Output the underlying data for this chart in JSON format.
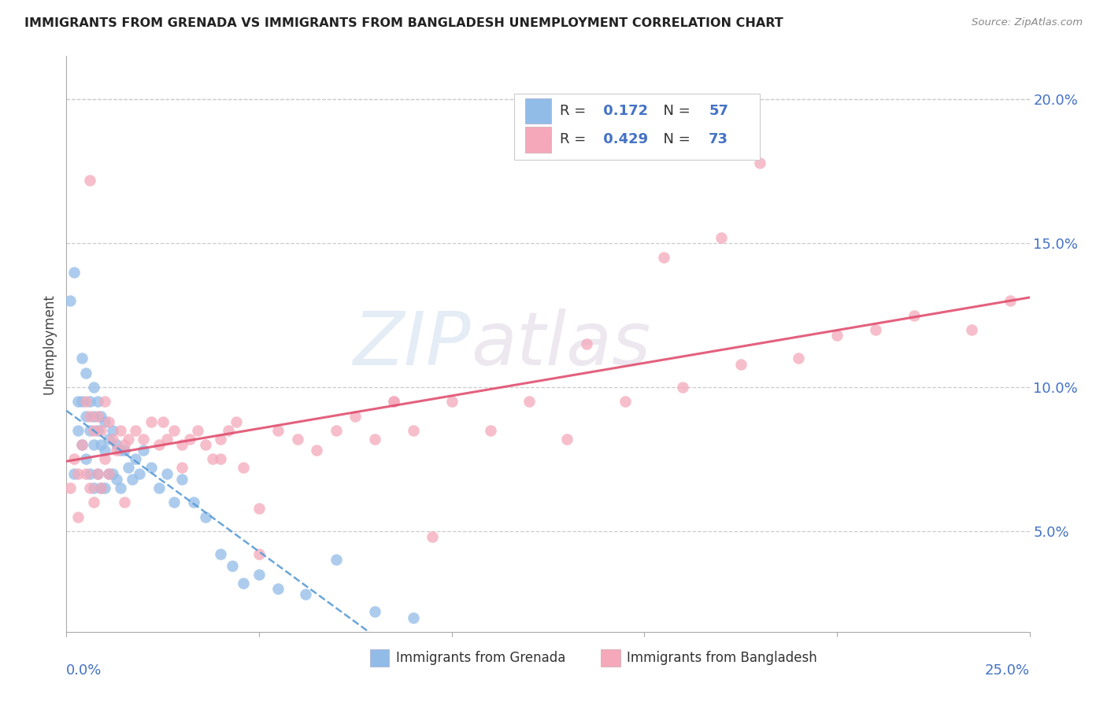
{
  "title": "IMMIGRANTS FROM GRENADA VS IMMIGRANTS FROM BANGLADESH UNEMPLOYMENT CORRELATION CHART",
  "source": "Source: ZipAtlas.com",
  "ylabel": "Unemployment",
  "yticks": [
    0.05,
    0.1,
    0.15,
    0.2
  ],
  "ytick_labels": [
    "5.0%",
    "10.0%",
    "15.0%",
    "20.0%"
  ],
  "xlim": [
    0.0,
    0.25
  ],
  "ylim": [
    0.015,
    0.215
  ],
  "R_grenada": 0.172,
  "N_grenada": 57,
  "R_bangladesh": 0.429,
  "N_bangladesh": 73,
  "color_grenada": "#92bce8",
  "color_bangladesh": "#f4a8ba",
  "trendline_grenada_color": "#5b9bd5",
  "trendline_bangladesh_color": "#e05070",
  "watermark_zip": "ZIP",
  "watermark_atlas": "atlas",
  "grenada_x": [
    0.001,
    0.002,
    0.002,
    0.003,
    0.003,
    0.004,
    0.004,
    0.004,
    0.005,
    0.005,
    0.005,
    0.006,
    0.006,
    0.006,
    0.007,
    0.007,
    0.007,
    0.007,
    0.008,
    0.008,
    0.008,
    0.009,
    0.009,
    0.009,
    0.01,
    0.01,
    0.01,
    0.011,
    0.011,
    0.012,
    0.012,
    0.013,
    0.013,
    0.014,
    0.014,
    0.015,
    0.016,
    0.017,
    0.018,
    0.019,
    0.02,
    0.022,
    0.024,
    0.026,
    0.028,
    0.03,
    0.033,
    0.036,
    0.04,
    0.043,
    0.046,
    0.05,
    0.055,
    0.062,
    0.07,
    0.08,
    0.09
  ],
  "grenada_y": [
    0.13,
    0.14,
    0.07,
    0.095,
    0.085,
    0.11,
    0.095,
    0.08,
    0.105,
    0.09,
    0.075,
    0.095,
    0.085,
    0.07,
    0.1,
    0.09,
    0.08,
    0.065,
    0.095,
    0.085,
    0.07,
    0.09,
    0.08,
    0.065,
    0.088,
    0.078,
    0.065,
    0.082,
    0.07,
    0.085,
    0.07,
    0.08,
    0.068,
    0.078,
    0.065,
    0.078,
    0.072,
    0.068,
    0.075,
    0.07,
    0.078,
    0.072,
    0.065,
    0.07,
    0.06,
    0.068,
    0.06,
    0.055,
    0.042,
    0.038,
    0.032,
    0.035,
    0.03,
    0.028,
    0.04,
    0.022,
    0.02
  ],
  "bangladesh_x": [
    0.001,
    0.002,
    0.003,
    0.004,
    0.005,
    0.005,
    0.006,
    0.006,
    0.007,
    0.007,
    0.008,
    0.008,
    0.009,
    0.009,
    0.01,
    0.01,
    0.011,
    0.011,
    0.012,
    0.013,
    0.014,
    0.015,
    0.016,
    0.018,
    0.02,
    0.022,
    0.024,
    0.026,
    0.028,
    0.03,
    0.032,
    0.034,
    0.036,
    0.038,
    0.04,
    0.042,
    0.044,
    0.046,
    0.05,
    0.055,
    0.06,
    0.065,
    0.07,
    0.075,
    0.08,
    0.085,
    0.09,
    0.1,
    0.11,
    0.12,
    0.13,
    0.145,
    0.16,
    0.175,
    0.19,
    0.2,
    0.21,
    0.22,
    0.235,
    0.245,
    0.003,
    0.006,
    0.17,
    0.18,
    0.095,
    0.05,
    0.03,
    0.04,
    0.025,
    0.015,
    0.155,
    0.135,
    0.085
  ],
  "bangladesh_y": [
    0.065,
    0.075,
    0.07,
    0.08,
    0.095,
    0.07,
    0.09,
    0.065,
    0.085,
    0.06,
    0.09,
    0.07,
    0.085,
    0.065,
    0.095,
    0.075,
    0.088,
    0.07,
    0.082,
    0.078,
    0.085,
    0.08,
    0.082,
    0.085,
    0.082,
    0.088,
    0.08,
    0.082,
    0.085,
    0.08,
    0.082,
    0.085,
    0.08,
    0.075,
    0.082,
    0.085,
    0.088,
    0.072,
    0.058,
    0.085,
    0.082,
    0.078,
    0.085,
    0.09,
    0.082,
    0.095,
    0.085,
    0.095,
    0.085,
    0.095,
    0.082,
    0.095,
    0.1,
    0.108,
    0.11,
    0.118,
    0.12,
    0.125,
    0.12,
    0.13,
    0.055,
    0.172,
    0.152,
    0.178,
    0.048,
    0.042,
    0.072,
    0.075,
    0.088,
    0.06,
    0.145,
    0.115,
    0.095
  ]
}
